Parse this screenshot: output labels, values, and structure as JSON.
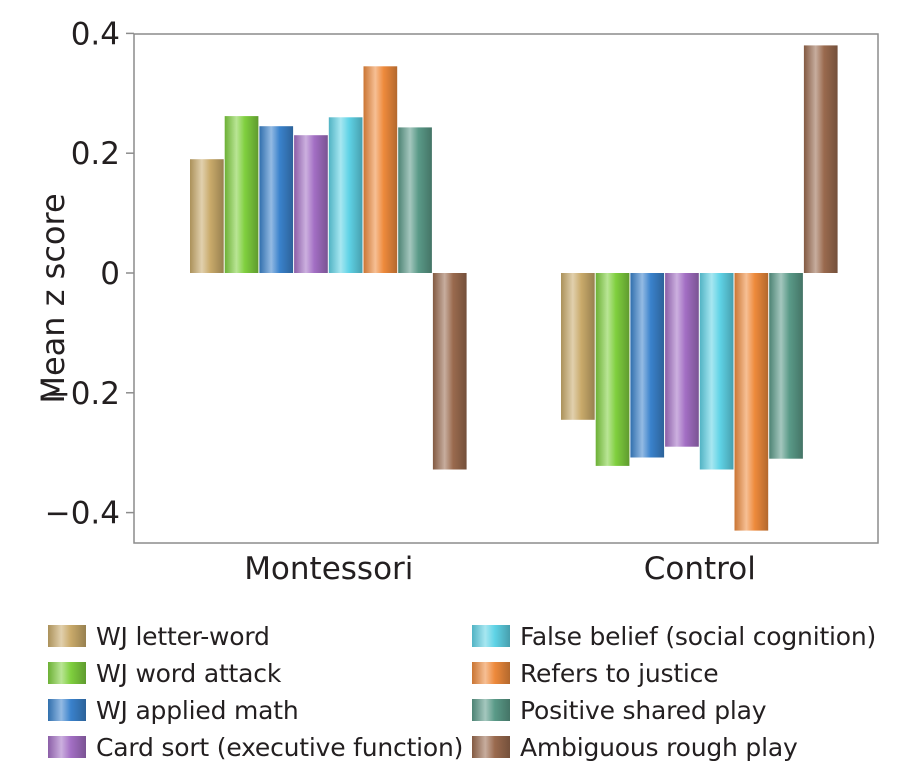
{
  "chart_data": {
    "type": "bar",
    "ylabel": "Mean z score",
    "xlabel": "",
    "ylim": [
      -0.45,
      0.4
    ],
    "yticks": [
      {
        "value": 0.4,
        "label": "0.4"
      },
      {
        "value": 0.2,
        "label": "0.2"
      },
      {
        "value": 0,
        "label": "0"
      },
      {
        "value": -0.2,
        "label": "−0.2"
      },
      {
        "value": -0.4,
        "label": "−0.4"
      }
    ],
    "categories": [
      "Montessori",
      "Control"
    ],
    "series": [
      {
        "name": "WJ letter-word",
        "color": "#c9aa6a",
        "values": [
          0.19,
          -0.245
        ]
      },
      {
        "name": "WJ word attack",
        "color": "#7fcf3e",
        "values": [
          0.262,
          -0.322
        ]
      },
      {
        "name": "WJ applied math",
        "color": "#3a82cc",
        "values": [
          0.245,
          -0.308
        ]
      },
      {
        "name": "Card sort (executive function)",
        "color": "#a36fc4",
        "values": [
          0.23,
          -0.29
        ]
      },
      {
        "name": "False belief (social cognition)",
        "color": "#5fd3e6",
        "values": [
          0.26,
          -0.328
        ]
      },
      {
        "name": "Refers to justice",
        "color": "#ee8a3c",
        "values": [
          0.345,
          -0.43
        ]
      },
      {
        "name": "Positive shared play",
        "color": "#5a9a88",
        "values": [
          0.243,
          -0.31
        ]
      },
      {
        "name": "Ambiguous rough play",
        "color": "#9a6a4e",
        "values": [
          -0.328,
          0.38
        ]
      }
    ],
    "legend": {
      "placement": "bottom",
      "columns": [
        [
          "WJ letter-word",
          "WJ word attack",
          "WJ applied math",
          "Card sort (executive function)"
        ],
        [
          "False belief (social cognition)",
          "Refers to justice",
          "Positive shared play",
          "Ambiguous rough play"
        ]
      ]
    },
    "grid": false
  }
}
